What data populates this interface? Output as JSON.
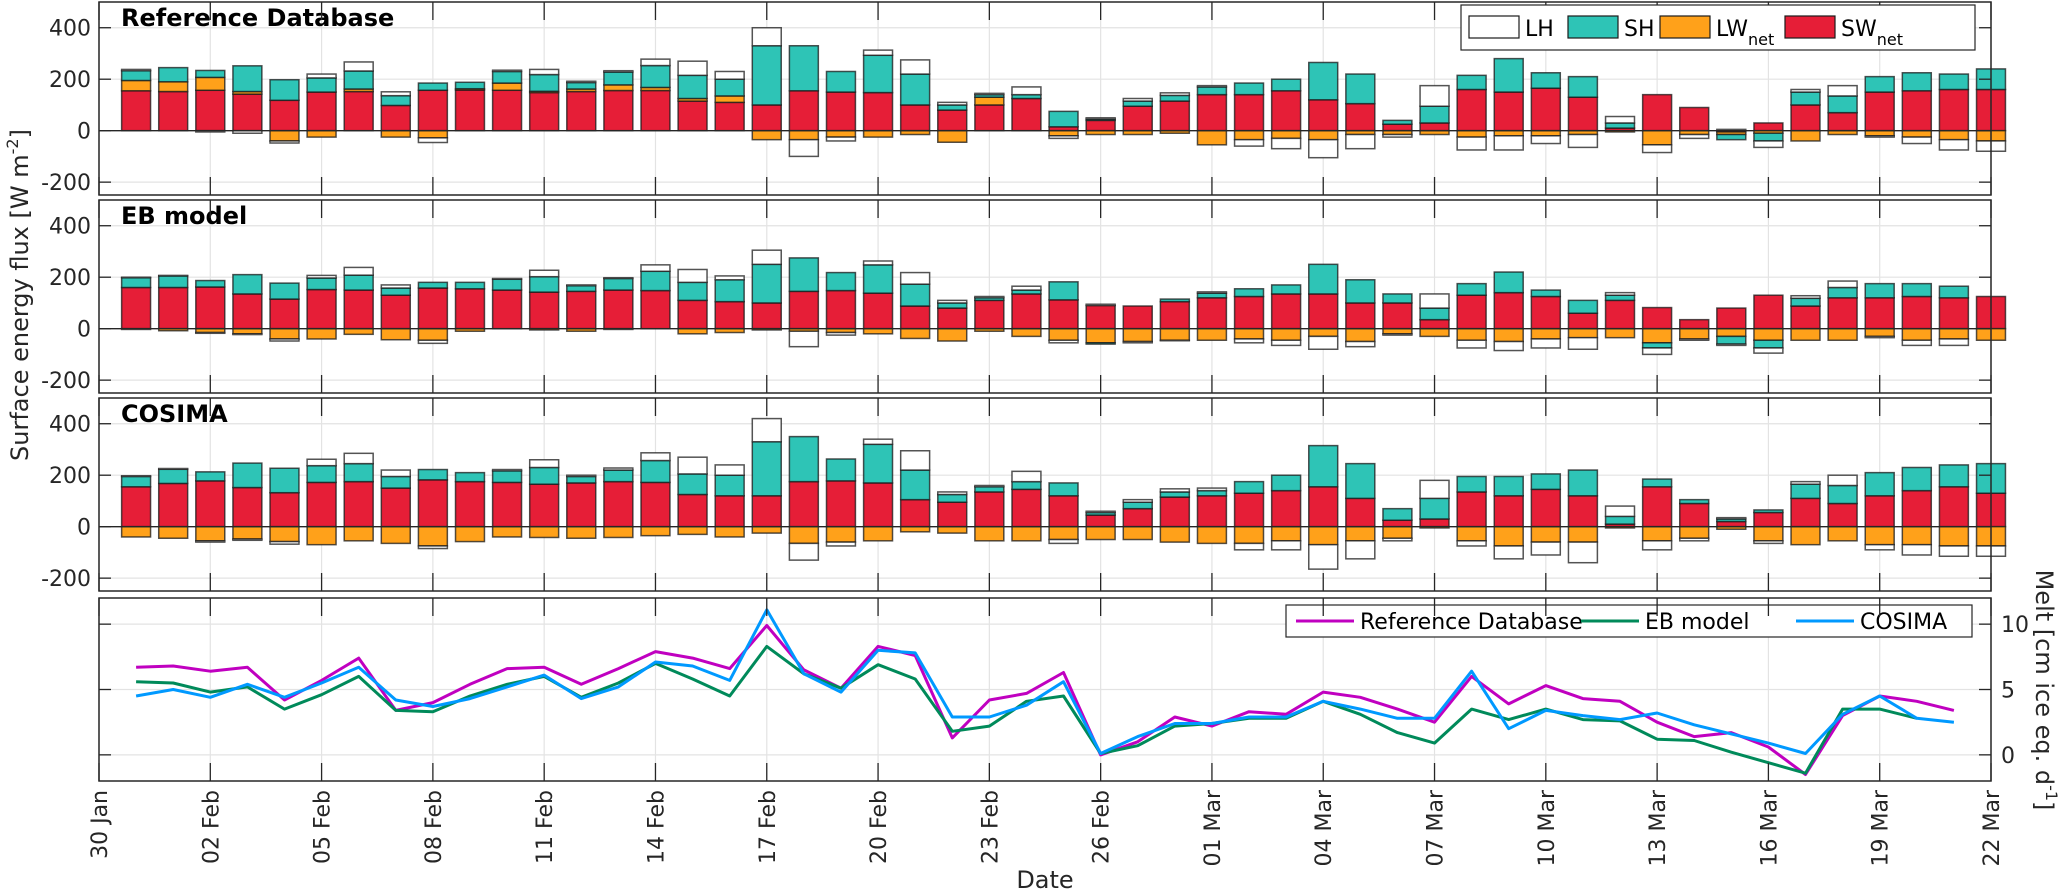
{
  "chart_data": [
    {
      "type": "bar",
      "stacked": true,
      "title": "Reference Database",
      "ylabel": "Surface energy flux [W m^-2]",
      "ylim": [
        -250,
        500
      ],
      "yticks": [
        -200,
        0,
        200,
        400
      ],
      "grid": true,
      "legend": {
        "placement": "top-right",
        "entries": [
          {
            "name": "LH",
            "sub": "",
            "color": "#ffffff"
          },
          {
            "name": "SH",
            "sub": "",
            "color": "#2ec4b6"
          },
          {
            "name": "LW",
            "sub": "net",
            "color": "#ffa11a"
          },
          {
            "name": "SW",
            "sub": "net",
            "color": "#e61e37"
          }
        ]
      },
      "series": [
        {
          "name": "SWnet",
          "values": [
            155,
            152,
            157,
            142,
            118,
            150,
            152,
            98,
            157,
            158,
            157,
            148,
            152,
            156,
            156,
            115,
            110,
            100,
            155,
            150,
            148,
            100,
            80,
            100,
            125,
            15,
            40,
            95,
            115,
            140,
            140,
            155,
            120,
            105,
            25,
            30,
            160,
            150,
            165,
            130,
            10,
            140,
            90,
            -5,
            30,
            100,
            70,
            150,
            155,
            160,
            160
          ]
        },
        {
          "name": "LWnet",
          "values": [
            40,
            38,
            50,
            10,
            -40,
            -25,
            10,
            -25,
            -28,
            5,
            28,
            5,
            10,
            22,
            12,
            10,
            25,
            -35,
            -35,
            -25,
            -25,
            -15,
            -45,
            30,
            0,
            -20,
            -15,
            -15,
            -10,
            -55,
            -35,
            -30,
            -35,
            -15,
            -15,
            -15,
            -25,
            -20,
            -20,
            -15,
            -5,
            -55,
            -15,
            -10,
            -10,
            -40,
            -15,
            -20,
            -25,
            -35,
            -40
          ]
        },
        {
          "name": "SH",
          "values": [
            38,
            55,
            27,
            100,
            80,
            55,
            70,
            38,
            28,
            25,
            45,
            65,
            25,
            50,
            85,
            90,
            65,
            230,
            175,
            80,
            145,
            120,
            20,
            10,
            15,
            60,
            5,
            20,
            22,
            30,
            45,
            45,
            145,
            115,
            15,
            65,
            55,
            130,
            60,
            80,
            20,
            0,
            0,
            -20,
            -30,
            50,
            65,
            60,
            70,
            60,
            80
          ]
        },
        {
          "name": "LH",
          "values": [
            5,
            0,
            -5,
            -10,
            -8,
            15,
            35,
            15,
            -18,
            0,
            5,
            20,
            5,
            5,
            25,
            55,
            30,
            70,
            -65,
            -15,
            20,
            55,
            10,
            5,
            30,
            -10,
            5,
            10,
            10,
            5,
            -25,
            -40,
            -70,
            -55,
            -10,
            80,
            -50,
            -55,
            -30,
            -50,
            25,
            -30,
            -15,
            5,
            -25,
            10,
            40,
            -5,
            -25,
            -40,
            -40
          ]
        }
      ]
    },
    {
      "type": "bar",
      "stacked": true,
      "title": "EB model",
      "ylim": [
        -250,
        500
      ],
      "yticks": [
        -200,
        0,
        200,
        400
      ],
      "grid": true,
      "series": [
        {
          "name": "SWnet",
          "values": [
            160,
            160,
            162,
            135,
            115,
            152,
            150,
            130,
            158,
            155,
            150,
            142,
            145,
            150,
            148,
            110,
            105,
            100,
            145,
            148,
            138,
            88,
            80,
            110,
            135,
            112,
            90,
            88,
            105,
            120,
            125,
            135,
            135,
            100,
            100,
            35,
            130,
            140,
            125,
            60,
            110,
            82,
            35,
            80,
            130,
            88,
            120,
            120,
            125,
            120,
            125
          ]
        },
        {
          "name": "LWnet",
          "values": [
            -3,
            -8,
            -15,
            -20,
            -40,
            -40,
            -22,
            -43,
            -45,
            -10,
            0,
            -5,
            -10,
            -3,
            0,
            -20,
            -15,
            -5,
            -10,
            -15,
            -20,
            -38,
            -48,
            -10,
            -30,
            -45,
            -55,
            -50,
            -45,
            -45,
            -40,
            -45,
            -30,
            -50,
            -20,
            -30,
            -45,
            -50,
            -40,
            -35,
            -35,
            -55,
            -40,
            -30,
            -45,
            -45,
            -45,
            -30,
            -45,
            -40,
            -45
          ]
        },
        {
          "name": "SH",
          "values": [
            38,
            45,
            25,
            75,
            62,
            45,
            58,
            28,
            22,
            25,
            42,
            60,
            22,
            45,
            75,
            70,
            85,
            150,
            130,
            70,
            110,
            85,
            20,
            10,
            15,
            70,
            -5,
            0,
            10,
            18,
            30,
            35,
            115,
            90,
            35,
            45,
            45,
            80,
            25,
            50,
            20,
            -20,
            0,
            -30,
            -30,
            30,
            40,
            55,
            50,
            45,
            0
          ]
        },
        {
          "name": "LH",
          "values": [
            2,
            2,
            -3,
            -3,
            -8,
            10,
            30,
            12,
            -12,
            0,
            3,
            25,
            3,
            3,
            25,
            50,
            15,
            55,
            -60,
            -10,
            15,
            45,
            10,
            5,
            15,
            -10,
            5,
            -5,
            -2,
            5,
            -15,
            -20,
            -50,
            -20,
            -5,
            55,
            -30,
            -35,
            -35,
            -45,
            10,
            -25,
            -5,
            -5,
            -20,
            10,
            25,
            -5,
            -20,
            -25,
            0
          ]
        }
      ]
    },
    {
      "type": "bar",
      "stacked": true,
      "title": "COSIMA",
      "ylim": [
        -250,
        500
      ],
      "yticks": [
        -200,
        0,
        200,
        400
      ],
      "grid": true,
      "series": [
        {
          "name": "SWnet",
          "values": [
            155,
            168,
            178,
            152,
            132,
            172,
            175,
            150,
            182,
            175,
            172,
            165,
            170,
            175,
            172,
            125,
            120,
            120,
            175,
            178,
            170,
            105,
            95,
            135,
            145,
            120,
            45,
            70,
            115,
            120,
            130,
            140,
            155,
            110,
            25,
            30,
            135,
            120,
            145,
            120,
            10,
            155,
            90,
            20,
            55,
            110,
            90,
            120,
            140,
            155,
            130
          ]
        },
        {
          "name": "LWnet",
          "values": [
            -40,
            -45,
            -55,
            -48,
            -58,
            -70,
            -55,
            -65,
            -75,
            -58,
            -40,
            -42,
            -45,
            -42,
            -35,
            -30,
            -40,
            -25,
            -65,
            -60,
            -55,
            -20,
            -25,
            -55,
            -55,
            -50,
            -50,
            -50,
            -60,
            -65,
            -65,
            -55,
            -70,
            -55,
            -45,
            -5,
            -55,
            -75,
            -60,
            -60,
            -5,
            -55,
            -45,
            -10,
            -55,
            -70,
            -55,
            -70,
            -70,
            -75,
            -75
          ]
        },
        {
          "name": "SH",
          "values": [
            40,
            55,
            35,
            95,
            95,
            65,
            70,
            45,
            40,
            35,
            45,
            65,
            25,
            45,
            85,
            80,
            80,
            210,
            175,
            85,
            150,
            115,
            30,
            20,
            30,
            50,
            10,
            25,
            20,
            20,
            45,
            60,
            160,
            135,
            45,
            80,
            60,
            75,
            60,
            100,
            30,
            30,
            15,
            10,
            10,
            55,
            70,
            90,
            90,
            85,
            115
          ]
        },
        {
          "name": "LH",
          "values": [
            3,
            3,
            -5,
            -5,
            -10,
            25,
            40,
            25,
            -10,
            0,
            5,
            30,
            5,
            8,
            30,
            65,
            40,
            90,
            -65,
            -15,
            20,
            75,
            10,
            5,
            40,
            -15,
            5,
            10,
            12,
            10,
            -25,
            -35,
            -95,
            -70,
            -10,
            70,
            -20,
            -50,
            -50,
            -80,
            40,
            -35,
            -10,
            5,
            -10,
            10,
            40,
            -20,
            -40,
            -40,
            -40
          ]
        }
      ]
    },
    {
      "type": "line",
      "title": "",
      "xlabel": "Date",
      "ylabel": "Melt [cm ice eq. d^-1]",
      "ylim": [
        -2,
        12
      ],
      "yticks": [
        0,
        5,
        10
      ],
      "grid": true,
      "legend": {
        "placement": "top-right"
      },
      "series": [
        {
          "name": "Reference Database",
          "color": "#c000c0",
          "values": [
            6.7,
            6.8,
            6.4,
            6.7,
            4.2,
            5.7,
            7.4,
            3.4,
            4.0,
            5.4,
            6.6,
            6.7,
            5.4,
            6.6,
            7.9,
            7.4,
            6.6,
            9.9,
            6.5,
            5.1,
            8.3,
            7.6,
            1.3,
            4.2,
            4.7,
            6.3,
            0.0,
            1.0,
            2.9,
            2.2,
            3.3,
            3.1,
            4.8,
            4.4,
            3.5,
            2.5,
            6.0,
            3.9,
            5.3,
            4.3,
            4.1,
            2.5,
            1.4,
            1.7,
            0.6,
            -1.5,
            3.0,
            4.5,
            4.1,
            3.4,
            null
          ]
        },
        {
          "name": "EB model",
          "color": "#008a5a",
          "values": [
            5.6,
            5.5,
            4.8,
            5.2,
            3.5,
            4.6,
            6.0,
            3.4,
            3.3,
            4.5,
            5.4,
            6.0,
            4.4,
            5.5,
            7.0,
            5.8,
            4.5,
            8.3,
            6.2,
            5.1,
            6.9,
            5.8,
            1.8,
            2.2,
            4.1,
            4.5,
            0.1,
            0.7,
            2.2,
            2.4,
            2.8,
            2.8,
            4.1,
            3.1,
            1.7,
            0.9,
            3.5,
            2.7,
            3.5,
            2.7,
            2.6,
            1.2,
            1.1,
            0.2,
            -0.6,
            -1.4,
            3.5,
            3.5,
            2.8,
            null,
            null
          ]
        },
        {
          "name": "COSIMA",
          "color": "#0099ff",
          "values": [
            4.5,
            5.0,
            4.4,
            5.4,
            4.4,
            5.5,
            6.7,
            4.2,
            3.7,
            4.3,
            5.2,
            6.1,
            4.3,
            5.2,
            7.1,
            6.8,
            5.7,
            11.1,
            6.2,
            4.8,
            8.0,
            7.8,
            2.9,
            2.9,
            3.8,
            5.6,
            0.1,
            1.4,
            2.4,
            2.4,
            2.9,
            2.9,
            4.1,
            3.5,
            2.8,
            2.8,
            6.4,
            2.0,
            3.4,
            3.0,
            2.7,
            3.2,
            2.3,
            1.6,
            0.9,
            0.1,
            3.1,
            4.5,
            2.8,
            2.5,
            null
          ]
        }
      ]
    }
  ],
  "xaxis": {
    "label": "Date",
    "start_date": "30 Jan",
    "end_date": "22 Mar",
    "bar_start_day": 1,
    "tick_labels": [
      "30 Jan",
      "02 Feb",
      "05 Feb",
      "08 Feb",
      "11 Feb",
      "14 Feb",
      "17 Feb",
      "20 Feb",
      "23 Feb",
      "26 Feb",
      "01 Mar",
      "04 Mar",
      "07 Mar",
      "10 Mar",
      "13 Mar",
      "16 Mar",
      "19 Mar",
      "22 Mar"
    ],
    "tick_days": [
      0,
      3,
      6,
      9,
      12,
      15,
      18,
      21,
      24,
      27,
      30,
      33,
      36,
      39,
      42,
      45,
      48,
      51
    ],
    "total_days": 51
  },
  "labels": {
    "left_ylabel": "Surface energy flux [W m",
    "left_ylabel_sup": "-2",
    "left_ylabel_end": "]",
    "right_ylabel": "Melt [cm ice eq. d",
    "right_ylabel_sup": "-1",
    "right_ylabel_end": "]"
  },
  "colors": {
    "SWnet": "#e61e37",
    "LWnet": "#ffa11a",
    "SH": "#2ec4b6",
    "LH": "#ffffff"
  }
}
